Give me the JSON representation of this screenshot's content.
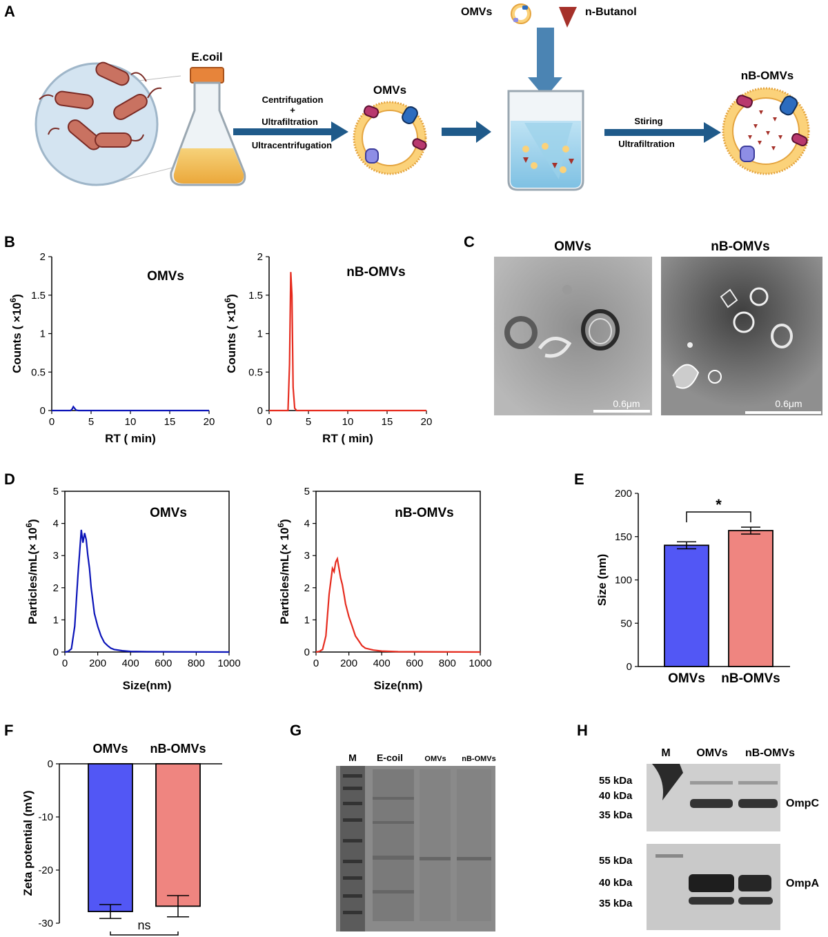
{
  "panel_letters": {
    "a": "A",
    "b": "B",
    "c": "C",
    "d": "D",
    "e": "E",
    "f": "F",
    "g": "G",
    "h": "H"
  },
  "schematic": {
    "ecoli_label": "E.coil",
    "step1_line1": "Centrifugation",
    "step1_plus": "+",
    "step1_line2": "Ultrafiltration",
    "step1_line3": "Ultracentrifugation",
    "omvs_label": "OMVs",
    "legend_omvs": "OMVs",
    "legend_nbutanol": "n-Butanol",
    "step2_line1": "Stiring",
    "step2_line2": "Ultrafiltration",
    "nb_label": "nB-OMVs"
  },
  "tem": {
    "left_title": "OMVs",
    "right_title": "nB-OMVs",
    "left_scale": "0.6μm",
    "right_scale": "0.6μm"
  },
  "gel": {
    "lanes": [
      "M",
      "E-coil",
      "OMVs",
      "nB-OMVs"
    ]
  },
  "western": {
    "lanes": [
      "M",
      "OMVs",
      "nB-OMVs"
    ],
    "top_markers": [
      "55 kDa",
      "40 kDa",
      "35 kDa"
    ],
    "bottom_markers": [
      "55 kDa",
      "40 kDa",
      "35 kDa"
    ],
    "top_protein": "OmpC",
    "bottom_protein": "OmpA"
  },
  "colors": {
    "omvs": "#0a13b8",
    "nb_omvs": "#e62b1e",
    "bar_omvs": "#5257f5",
    "bar_nb": "#ef8580",
    "arrow": "#1f5a8a"
  },
  "chart_data": [
    {
      "id": "B-left",
      "type": "line",
      "panel": "B",
      "inset_label": "OMVs",
      "xlabel": "RT ( min)",
      "ylabel": "Counts ( ×10^6)",
      "xlim": [
        0,
        20
      ],
      "ylim": [
        0,
        2
      ],
      "xticks": [
        "0",
        "5",
        "10",
        "15",
        "20"
      ],
      "yticks": [
        "0",
        "0.5",
        "1",
        "1.5",
        "2"
      ],
      "series": [
        {
          "x": [
            0,
            2.4,
            2.6,
            2.75,
            2.9,
            3.1,
            3.4,
            20
          ],
          "y": [
            0,
            0,
            0.02,
            0.05,
            0.03,
            0.005,
            0,
            0
          ]
        }
      ]
    },
    {
      "id": "B-right",
      "type": "line",
      "panel": "B",
      "inset_label": "nB-OMVs",
      "xlabel": "RT ( min)",
      "ylabel": "Counts ( ×10^6)",
      "xlim": [
        0,
        20
      ],
      "ylim": [
        0,
        2
      ],
      "xticks": [
        "0",
        "5",
        "10",
        "15",
        "20"
      ],
      "yticks": [
        "0",
        "0.5",
        "1",
        "1.5",
        "2"
      ],
      "series": [
        {
          "x": [
            0,
            2.4,
            2.6,
            2.75,
            2.9,
            3.05,
            3.25,
            3.5,
            20
          ],
          "y": [
            0,
            0,
            0.6,
            1.8,
            1.5,
            0.3,
            0.03,
            0,
            0
          ]
        }
      ]
    },
    {
      "id": "D-left",
      "type": "line",
      "panel": "D",
      "inset_label": "OMVs",
      "xlabel": "Size(nm)",
      "ylabel": "Particles/mL(× 10^6)",
      "xlim": [
        0,
        1000
      ],
      "ylim": [
        0,
        5
      ],
      "xticks": [
        "0",
        "200",
        "400",
        "600",
        "800",
        "1000"
      ],
      "yticks": [
        "0",
        "1",
        "2",
        "3",
        "4",
        "5"
      ],
      "series": [
        {
          "x": [
            0,
            20,
            40,
            60,
            80,
            100,
            110,
            120,
            130,
            140,
            150,
            160,
            170,
            180,
            190,
            200,
            220,
            240,
            260,
            280,
            300,
            350,
            400,
            500,
            1000
          ],
          "y": [
            0,
            0.02,
            0.1,
            0.8,
            2.4,
            3.8,
            3.4,
            3.7,
            3.5,
            3.0,
            2.6,
            2.0,
            1.6,
            1.2,
            1.0,
            0.8,
            0.5,
            0.3,
            0.2,
            0.12,
            0.08,
            0.04,
            0.02,
            0.01,
            0
          ]
        }
      ]
    },
    {
      "id": "D-right",
      "type": "line",
      "panel": "D",
      "inset_label": "nB-OMVs",
      "xlabel": "Size(nm)",
      "ylabel": "Particles/mL(× 10^6)",
      "xlim": [
        0,
        1000
      ],
      "ylim": [
        0,
        5
      ],
      "xticks": [
        "0",
        "200",
        "400",
        "600",
        "800",
        "1000"
      ],
      "yticks": [
        "0",
        "1",
        "2",
        "3",
        "4",
        "5"
      ],
      "series": [
        {
          "x": [
            0,
            20,
            40,
            60,
            80,
            100,
            110,
            120,
            130,
            140,
            150,
            160,
            170,
            180,
            190,
            200,
            220,
            240,
            260,
            280,
            300,
            350,
            400,
            500,
            1000
          ],
          "y": [
            0,
            0.02,
            0.08,
            0.5,
            1.8,
            2.6,
            2.5,
            2.8,
            2.9,
            2.6,
            2.3,
            2.1,
            1.8,
            1.5,
            1.3,
            1.1,
            0.8,
            0.5,
            0.35,
            0.2,
            0.12,
            0.06,
            0.03,
            0.01,
            0
          ]
        }
      ]
    },
    {
      "id": "E",
      "type": "bar",
      "panel": "E",
      "categories": [
        "OMVs",
        "nB-OMVs"
      ],
      "values": [
        140,
        157
      ],
      "errors": [
        4,
        4
      ],
      "ylabel": "Size (nm)",
      "ylim": [
        0,
        200
      ],
      "yticks": [
        "0",
        "50",
        "100",
        "150",
        "200"
      ],
      "significance": "*"
    },
    {
      "id": "F",
      "type": "bar",
      "panel": "F",
      "categories": [
        "OMVs",
        "nB-OMVs"
      ],
      "values": [
        -27.8,
        -26.8
      ],
      "errors": [
        1.3,
        2.0
      ],
      "ylabel": "Zeta potential (mV)",
      "ylim": [
        -30,
        0
      ],
      "yticks": [
        "0",
        "-10",
        "-20",
        "-30"
      ],
      "significance": "ns"
    }
  ]
}
